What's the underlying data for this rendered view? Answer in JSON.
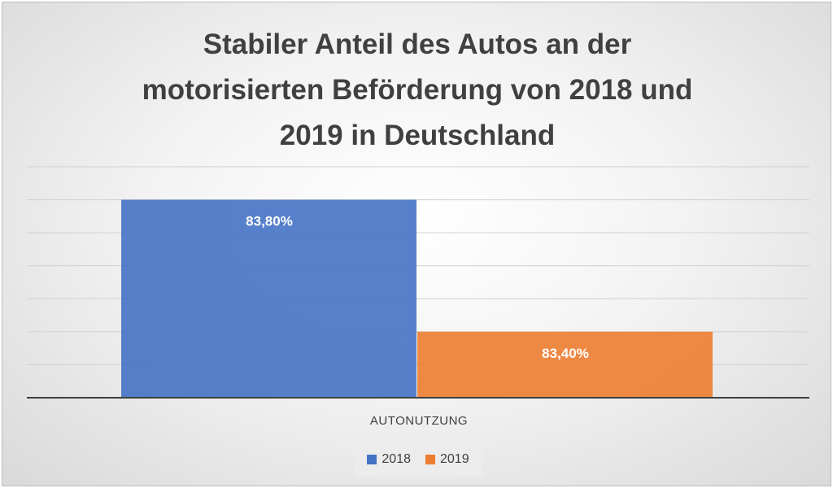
{
  "chart_data": {
    "type": "bar",
    "title": "Stabiler Anteil des Autos an der motorisierten Beförderung von 2018 und 2019 in Deutschland",
    "title_lines": [
      "Stabiler Anteil des Autos an der",
      "motorisierten Beförderung von 2018 und",
      "2019 in Deutschland"
    ],
    "categories": [
      "AUTONUTZUNG"
    ],
    "series": [
      {
        "name": "2018",
        "values": [
          83.8
        ],
        "label": "83,80%",
        "color": "#4472c4"
      },
      {
        "name": "2019",
        "values": [
          83.4
        ],
        "label": "83,40%",
        "color": "#ed7d31"
      }
    ],
    "ylim": [
      83.2,
      83.9
    ],
    "grid": true,
    "legend_position": "bottom"
  }
}
